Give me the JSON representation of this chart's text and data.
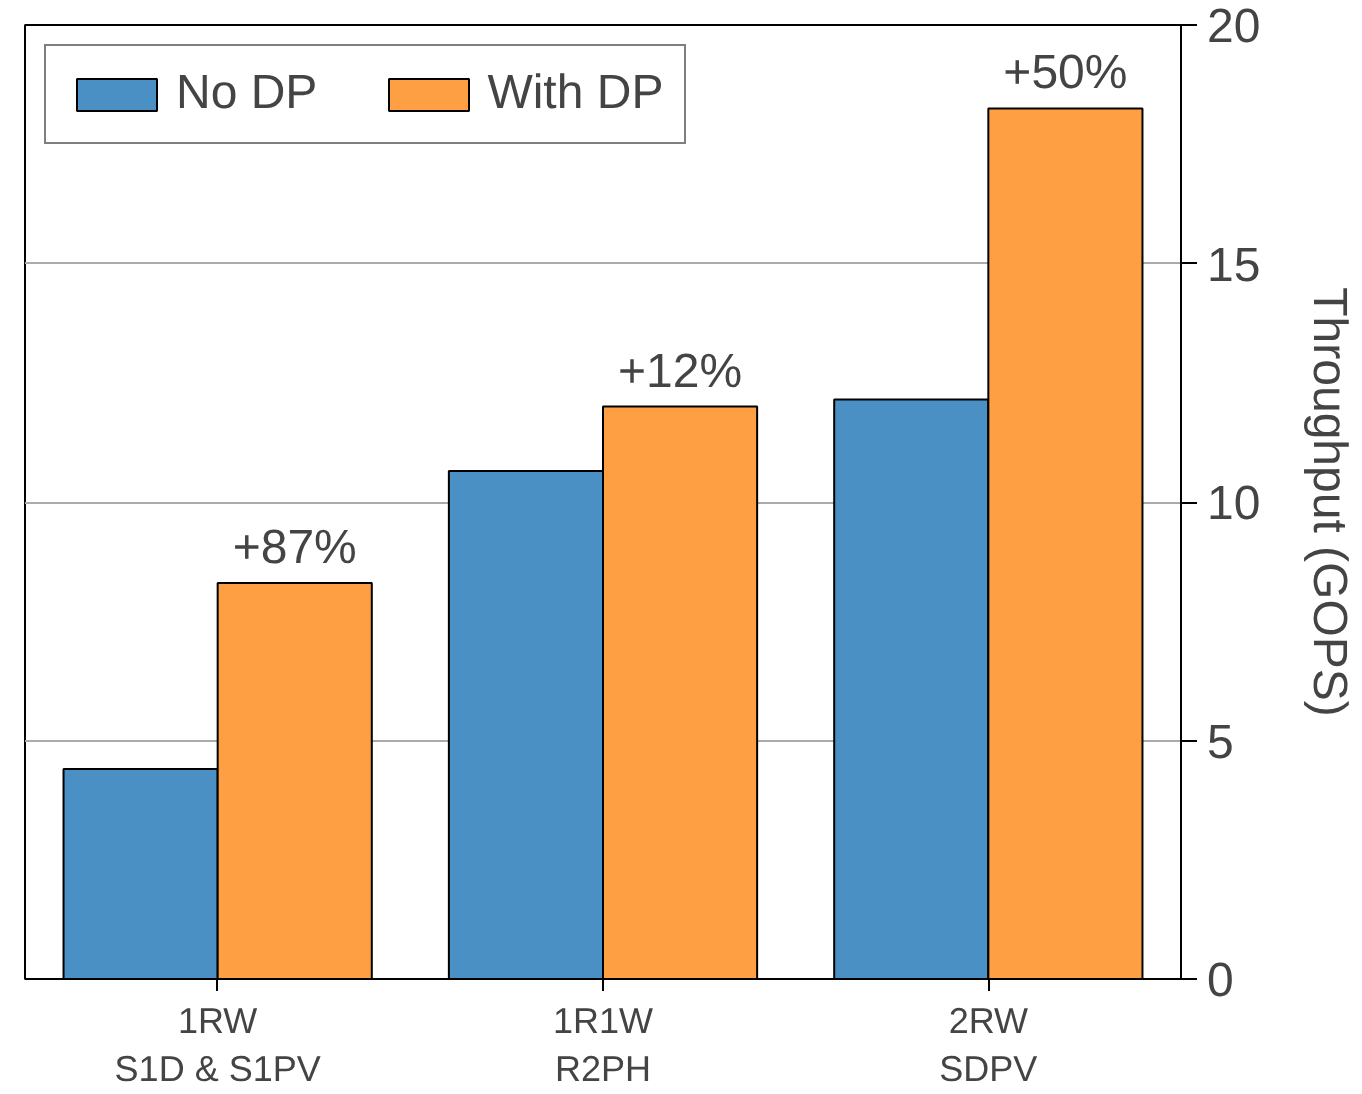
{
  "chart_data": {
    "type": "bar",
    "ylabel": "Throughput (GOPS)",
    "categories": [
      "1RW\nS1D & S1PV",
      "1R1W\nR2PH",
      "2RW\nSDPV"
    ],
    "series": [
      {
        "name": "No DP",
        "color": "#4a90c4",
        "values": [
          4.4,
          10.65,
          12.15
        ]
      },
      {
        "name": "With DP",
        "color": "#fe9f44",
        "values": [
          8.3,
          12.0,
          18.25
        ]
      }
    ],
    "annotations": [
      {
        "text": "+87%",
        "x": "1RW\nS1D & S1PV",
        "y": 8.3
      },
      {
        "text": "+12%",
        "x": "1R1W\nR2PH",
        "y": 12.0
      },
      {
        "text": "+50%",
        "x": "2RW\nSDPV",
        "y": 18.25
      }
    ],
    "ylim": [
      0,
      20
    ],
    "yticks": [
      0,
      5,
      10,
      15,
      20
    ],
    "grid": "y",
    "legend": "top left"
  }
}
